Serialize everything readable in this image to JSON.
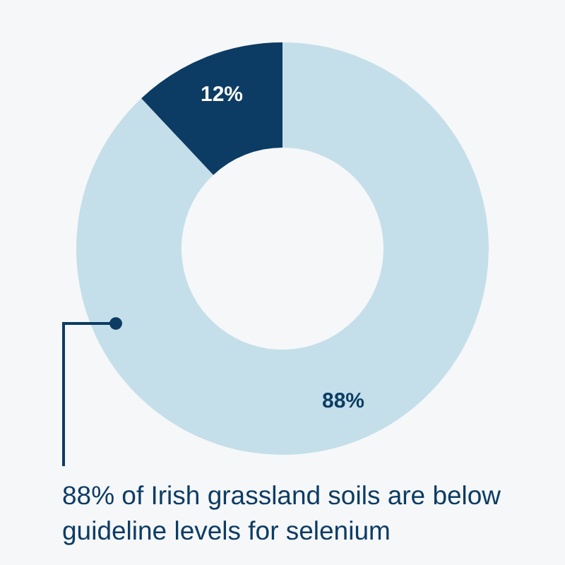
{
  "chart_data": {
    "type": "donut",
    "categories": [
      null,
      null
    ],
    "values": [
      88,
      12
    ],
    "colors": [
      "#c4dfe9",
      "#0c3c64"
    ],
    "value_labels": [
      "88%",
      "12%"
    ],
    "annotations": [
      "88% of Irish grassland soils are below guideline levels for selenium"
    ]
  }
}
